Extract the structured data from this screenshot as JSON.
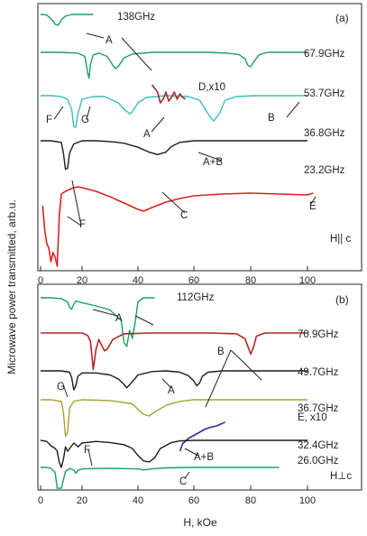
{
  "figure": {
    "ylabel": "Microwave power transmitted, arb.u.",
    "xlabel": "H, kOe"
  },
  "colors": {
    "green": "#1aa05a",
    "cyan": "#3bbcbc",
    "black": "#1c1c1c",
    "red": "#e02020",
    "darkred": "#b02828",
    "olive": "#a8a030",
    "blue": "#24309a"
  },
  "chart_data": [
    {
      "type": "line",
      "panel_label": "(a)",
      "orientation_label": "H|| c",
      "xlim": [
        0,
        102
      ],
      "xticks": [
        "0",
        "20",
        "40",
        "60",
        "80",
        "100"
      ],
      "series": [
        {
          "name": "138GHz",
          "color": "green",
          "x": [
            0,
            3,
            6,
            7,
            8,
            9,
            10,
            12,
            15,
            18,
            20,
            22,
            24
          ],
          "y": [
            1.0,
            0.99,
            0.88,
            0.82,
            0.8,
            0.82,
            0.9,
            0.97,
            1.0,
            1.0,
            1.0,
            1.0,
            1.0
          ]
        },
        {
          "name": "67.9GHz",
          "color": "green",
          "x": [
            0,
            10,
            18,
            21,
            22,
            22.5,
            23,
            24,
            26,
            29,
            31,
            32,
            33,
            35,
            38,
            45,
            55,
            65,
            72,
            76,
            78,
            79,
            80,
            81,
            83,
            86,
            90,
            100
          ],
          "y": [
            1.0,
            1.0,
            0.99,
            0.95,
            0.75,
            0.68,
            0.85,
            0.97,
            0.99,
            0.95,
            0.84,
            0.8,
            0.83,
            0.93,
            0.98,
            1.0,
            1.0,
            1.0,
            0.99,
            0.97,
            0.92,
            0.84,
            0.82,
            0.88,
            0.97,
            1.0,
            1.0,
            1.0
          ]
        },
        {
          "name": "53.7GHz",
          "color": "cyan",
          "x": [
            0,
            5,
            10,
            13,
            15,
            16,
            17,
            18,
            20,
            24,
            28,
            33,
            35,
            37,
            38,
            40,
            43,
            50,
            58,
            62,
            64,
            66,
            67,
            69,
            71,
            75,
            82,
            90,
            100
          ],
          "y": [
            1.0,
            1.0,
            0.99,
            0.96,
            0.85,
            0.66,
            0.65,
            0.8,
            0.96,
            0.99,
            0.99,
            0.92,
            0.85,
            0.8,
            0.82,
            0.92,
            0.98,
            1.0,
            0.99,
            0.95,
            0.85,
            0.75,
            0.72,
            0.8,
            0.95,
            0.99,
            1.0,
            1.0,
            1.0
          ]
        },
        {
          "name": "D, x10",
          "color": "darkred",
          "x": [
            45,
            46,
            47,
            48,
            49,
            50,
            51,
            52,
            53,
            54,
            55,
            56,
            57
          ],
          "y": [
            1.06,
            1.04,
            1.02,
            0.96,
            0.98,
            1.02,
            0.97,
            0.99,
            1.02,
            0.98,
            1.01,
            0.99,
            0.98
          ]
        },
        {
          "name": "36.8GHz",
          "color": "black",
          "x": [
            0,
            5,
            10,
            11,
            12,
            13,
            14,
            16,
            20,
            25,
            30,
            35,
            40,
            44,
            47,
            50,
            52,
            55,
            60,
            70,
            80,
            90,
            100
          ],
          "y": [
            1.0,
            1.0,
            0.98,
            0.85,
            0.65,
            0.66,
            0.85,
            0.96,
            1.0,
            1.0,
            0.99,
            0.97,
            0.92,
            0.86,
            0.83,
            0.86,
            0.93,
            0.98,
            1.0,
            1.0,
            1.0,
            1.0,
            1.0
          ]
        },
        {
          "name": "23.2GHz",
          "color": "red",
          "x": [
            1,
            2,
            3,
            4,
            5,
            6,
            7,
            8,
            9,
            10,
            12,
            14,
            16,
            18,
            20,
            25,
            30,
            35,
            40,
            42,
            45,
            50,
            55,
            60,
            70,
            80,
            90,
            100,
            102
          ],
          "y": [
            0.72,
            0.45,
            0.3,
            0.25,
            0.1,
            0.2,
            0.15,
            0.05,
            0.6,
            0.85,
            0.88,
            0.9,
            0.92,
            0.93,
            0.92,
            0.88,
            0.82,
            0.75,
            0.68,
            0.66,
            0.7,
            0.76,
            0.8,
            0.83,
            0.85,
            0.86,
            0.85,
            0.84,
            0.86
          ]
        }
      ],
      "annotations": [
        "A",
        "A",
        "A",
        "A+B",
        "B",
        "C",
        "D,x10",
        "E",
        "F",
        "F",
        "G"
      ]
    },
    {
      "type": "line",
      "panel_label": "(b)",
      "orientation_label": "H⊥c",
      "xlim": [
        0,
        102
      ],
      "xticks": [
        "0",
        "20",
        "40",
        "60",
        "80",
        "100"
      ],
      "series": [
        {
          "name": "112GHz",
          "color": "green",
          "x": [
            0,
            5,
            10,
            13,
            14,
            15,
            16,
            17,
            20,
            25,
            30,
            34,
            35,
            36,
            37,
            38,
            39,
            40,
            42,
            46
          ],
          "y": [
            1.0,
            1.0,
            0.99,
            0.95,
            0.88,
            0.86,
            0.92,
            0.96,
            0.94,
            0.9,
            0.85,
            0.72,
            0.45,
            0.4,
            0.6,
            0.5,
            0.7,
            0.95,
            1.0,
            1.0
          ]
        },
        {
          "name": "70.9GHz",
          "color": "darkred",
          "x": [
            0,
            10,
            20,
            22,
            23,
            24,
            25,
            26,
            27,
            28,
            29,
            31,
            35,
            45,
            55,
            65,
            75,
            78,
            80,
            81,
            82,
            85,
            90,
            100
          ],
          "y": [
            1.0,
            1.0,
            1.0,
            0.97,
            0.9,
            0.55,
            0.8,
            0.92,
            0.85,
            0.78,
            0.8,
            0.92,
            0.99,
            1.0,
            1.0,
            1.0,
            0.99,
            0.93,
            0.74,
            0.82,
            0.96,
            1.0,
            1.0,
            1.0
          ]
        },
        {
          "name": "49.7GHz",
          "color": "black",
          "x": [
            0,
            5,
            10,
            14,
            15,
            16,
            17,
            18,
            20,
            25,
            30,
            33,
            35,
            36,
            38,
            40,
            45,
            50,
            55,
            58,
            60,
            61,
            62,
            63,
            65,
            70,
            80,
            90,
            100
          ],
          "y": [
            1.0,
            1.0,
            1.0,
            0.98,
            0.9,
            0.72,
            0.78,
            0.92,
            0.97,
            0.97,
            0.94,
            0.88,
            0.8,
            0.75,
            0.84,
            0.94,
            0.99,
            1.0,
            0.98,
            0.93,
            0.85,
            0.78,
            0.82,
            0.92,
            0.98,
            1.0,
            1.0,
            1.0,
            1.0
          ]
        },
        {
          "name": "36.7GHz",
          "color": "olive",
          "x": [
            0,
            5,
            10,
            11,
            12,
            13,
            14,
            16,
            20,
            30,
            38,
            40,
            42,
            44,
            46,
            50,
            55,
            60,
            70,
            80,
            90,
            100
          ],
          "y": [
            1.0,
            1.0,
            0.98,
            0.85,
            0.55,
            0.6,
            0.9,
            0.98,
            1.0,
            0.99,
            0.95,
            0.88,
            0.82,
            0.8,
            0.85,
            0.93,
            0.98,
            1.0,
            1.0,
            1.0,
            1.0,
            1.0
          ]
        },
        {
          "name": "E, x10",
          "color": "blue",
          "x": [
            55,
            56,
            58,
            60,
            62,
            64,
            66,
            68,
            70,
            71
          ],
          "y": [
            0.5,
            0.62,
            0.7,
            0.75,
            0.8,
            0.85,
            0.88,
            0.9,
            0.94,
            0.96
          ]
        },
        {
          "name": "32.4GHz",
          "color": "black",
          "x": [
            0,
            3,
            5,
            7,
            8,
            9,
            10,
            11,
            12,
            13,
            14,
            15,
            16,
            17,
            18,
            20,
            25,
            30,
            35,
            38,
            40,
            42,
            44,
            46,
            48,
            52,
            55,
            60,
            70,
            80,
            90,
            100
          ],
          "y": [
            1.0,
            0.98,
            0.9,
            0.85,
            0.8,
            0.6,
            0.5,
            0.65,
            0.88,
            0.8,
            0.85,
            0.9,
            0.95,
            0.92,
            0.88,
            0.95,
            0.98,
            0.96,
            0.92,
            0.85,
            0.72,
            0.62,
            0.6,
            0.68,
            0.85,
            0.96,
            0.99,
            1.0,
            1.0,
            1.0,
            1.0,
            1.0
          ]
        },
        {
          "name": "26.0GHz",
          "color": "green",
          "x": [
            0,
            3,
            5,
            7,
            8,
            9,
            10,
            11,
            12,
            14,
            16,
            17,
            18,
            20,
            30,
            40,
            42,
            45,
            50,
            60,
            70,
            80,
            90
          ],
          "y": [
            1.0,
            1.0,
            0.98,
            0.9,
            0.5,
            0.3,
            0.4,
            0.75,
            0.92,
            0.98,
            0.95,
            0.88,
            0.94,
            0.97,
            0.98,
            0.97,
            0.95,
            0.97,
            0.99,
            1.0,
            1.0,
            1.0,
            1.0
          ]
        }
      ],
      "annotations": [
        "A",
        "A",
        "A+B",
        "B",
        "C",
        "E, x10",
        "F",
        "G"
      ]
    }
  ]
}
